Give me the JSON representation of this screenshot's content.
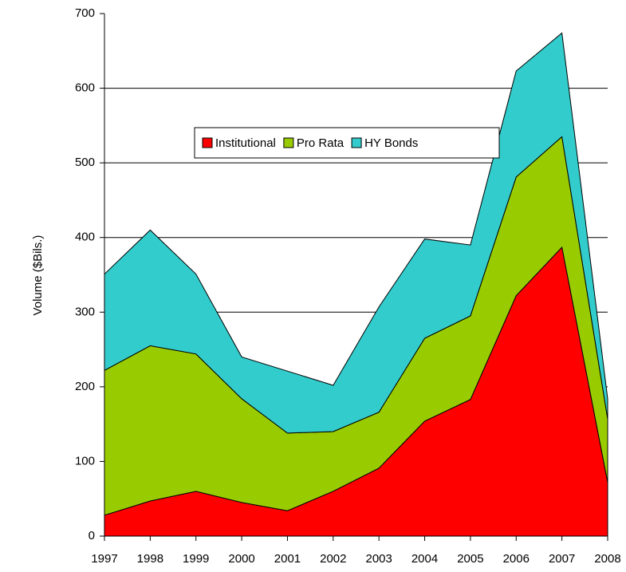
{
  "chart_data": {
    "type": "stacked_area",
    "y_label": "Volume ($Bils.)",
    "categories": [
      "1997",
      "1998",
      "1999",
      "2000",
      "2001",
      "2002",
      "2003",
      "2004",
      "2005",
      "2006",
      "2007",
      "2008"
    ],
    "series": [
      {
        "name": "Institutional",
        "color": "#ff0000",
        "values": [
          28,
          47,
          60,
          45,
          34,
          60,
          91,
          154,
          183,
          322,
          387,
          72
        ]
      },
      {
        "name": "Pro Rata",
        "color": "#99cc00",
        "values": [
          194,
          208,
          184,
          139,
          104,
          80,
          75,
          111,
          112,
          159,
          148,
          85
        ]
      },
      {
        "name": "HY Bonds",
        "color": "#33cccc",
        "values": [
          129,
          155,
          107,
          56,
          83,
          62,
          141,
          133,
          95,
          142,
          139,
          27
        ]
      }
    ],
    "ylim": [
      0,
      700
    ],
    "yticks": [
      0,
      100,
      200,
      300,
      400,
      500,
      600,
      700
    ],
    "grid": true
  }
}
